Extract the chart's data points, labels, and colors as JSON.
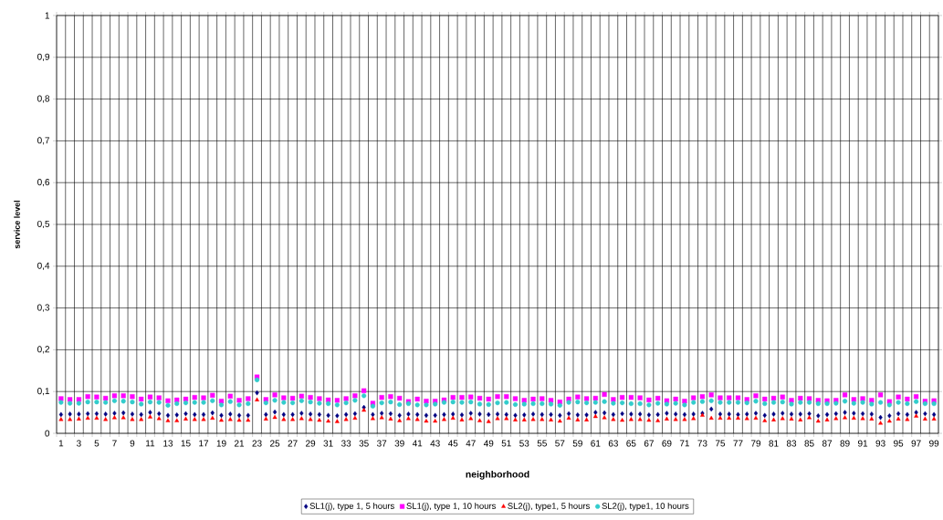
{
  "chart_data": {
    "type": "scatter",
    "xlabel": "neighborhood",
    "ylabel": "service level",
    "categories": [
      "1",
      null,
      "3",
      null,
      "5",
      null,
      "7",
      null,
      "9",
      null,
      "11",
      null,
      "13",
      null,
      "15",
      null,
      "17",
      null,
      "19",
      null,
      "21",
      null,
      "23",
      null,
      "25",
      null,
      "27",
      null,
      "29",
      null,
      "31",
      null,
      "33",
      null,
      "35",
      null,
      "37",
      null,
      "39",
      null,
      "41",
      null,
      "43",
      null,
      "45",
      null,
      "47",
      null,
      "49",
      null,
      "51",
      null,
      "53",
      null,
      "55",
      null,
      "57",
      null,
      "59",
      null,
      "61",
      null,
      "63",
      null,
      "65",
      null,
      "67",
      null,
      "69",
      null,
      "71",
      null,
      "73",
      null,
      "75",
      null,
      "77",
      null,
      "79",
      null,
      "81",
      null,
      "83",
      null,
      "85",
      null,
      "87",
      null,
      "89",
      null,
      "91",
      null,
      "93",
      null,
      "95",
      null,
      "97",
      null,
      "99"
    ],
    "series": [
      {
        "name": "SL1(j), type 1, 5 hours",
        "color": "#000080",
        "marker": "diamond",
        "values": [
          0.045,
          0.046,
          0.046,
          0.047,
          0.047,
          0.046,
          0.048,
          0.049,
          0.046,
          0.045,
          0.05,
          0.047,
          0.043,
          0.044,
          0.047,
          0.045,
          0.045,
          0.049,
          0.043,
          0.046,
          0.043,
          0.043,
          0.097,
          0.045,
          0.051,
          0.045,
          0.045,
          0.048,
          0.046,
          0.045,
          0.043,
          0.042,
          0.045,
          0.047,
          0.062,
          0.045,
          0.048,
          0.047,
          0.043,
          0.046,
          0.045,
          0.043,
          0.043,
          0.045,
          0.046,
          0.044,
          0.048,
          0.046,
          0.045,
          0.046,
          0.045,
          0.043,
          0.044,
          0.046,
          0.045,
          0.045,
          0.043,
          0.047,
          0.044,
          0.044,
          0.05,
          0.049,
          0.045,
          0.047,
          0.046,
          0.046,
          0.044,
          0.045,
          0.048,
          0.046,
          0.045,
          0.046,
          0.048,
          0.058,
          0.046,
          0.046,
          0.045,
          0.046,
          0.048,
          0.043,
          0.046,
          0.048,
          0.046,
          0.046,
          0.047,
          0.042,
          0.045,
          0.047,
          0.05,
          0.048,
          0.047,
          0.046,
          0.038,
          0.042,
          0.047,
          0.045,
          0.05,
          0.047,
          0.045
        ]
      },
      {
        "name": "SL1(j), type 1, 10 hours",
        "color": "#ff00ff",
        "marker": "square",
        "values": [
          0.083,
          0.081,
          0.081,
          0.088,
          0.087,
          0.084,
          0.09,
          0.09,
          0.088,
          0.082,
          0.087,
          0.085,
          0.078,
          0.08,
          0.082,
          0.086,
          0.085,
          0.091,
          0.077,
          0.089,
          0.079,
          0.083,
          0.135,
          0.081,
          0.092,
          0.085,
          0.084,
          0.089,
          0.086,
          0.083,
          0.08,
          0.079,
          0.083,
          0.09,
          0.102,
          0.072,
          0.086,
          0.088,
          0.084,
          0.076,
          0.082,
          0.077,
          0.077,
          0.08,
          0.086,
          0.086,
          0.087,
          0.084,
          0.082,
          0.088,
          0.088,
          0.083,
          0.079,
          0.082,
          0.083,
          0.079,
          0.075,
          0.082,
          0.087,
          0.083,
          0.084,
          0.093,
          0.081,
          0.086,
          0.086,
          0.085,
          0.08,
          0.084,
          0.078,
          0.082,
          0.077,
          0.085,
          0.088,
          0.092,
          0.085,
          0.085,
          0.085,
          0.081,
          0.09,
          0.082,
          0.084,
          0.087,
          0.079,
          0.084,
          0.083,
          0.079,
          0.078,
          0.079,
          0.092,
          0.081,
          0.083,
          0.079,
          0.092,
          0.076,
          0.087,
          0.082,
          0.088,
          0.077,
          0.078
        ]
      },
      {
        "name": "SL2(j), type1, 5 hours",
        "color": "#ff0000",
        "marker": "triangle",
        "values": [
          0.033,
          0.033,
          0.034,
          0.036,
          0.036,
          0.033,
          0.037,
          0.037,
          0.033,
          0.033,
          0.039,
          0.035,
          0.03,
          0.03,
          0.034,
          0.033,
          0.033,
          0.036,
          0.031,
          0.033,
          0.031,
          0.031,
          0.08,
          0.034,
          0.038,
          0.033,
          0.033,
          0.035,
          0.033,
          0.031,
          0.029,
          0.028,
          0.033,
          0.036,
          0.055,
          0.035,
          0.037,
          0.034,
          0.03,
          0.035,
          0.033,
          0.029,
          0.029,
          0.033,
          0.036,
          0.032,
          0.035,
          0.03,
          0.028,
          0.035,
          0.035,
          0.032,
          0.032,
          0.033,
          0.033,
          0.032,
          0.029,
          0.036,
          0.032,
          0.032,
          0.04,
          0.037,
          0.033,
          0.031,
          0.033,
          0.033,
          0.031,
          0.03,
          0.034,
          0.033,
          0.033,
          0.035,
          0.043,
          0.036,
          0.036,
          0.036,
          0.036,
          0.035,
          0.036,
          0.03,
          0.032,
          0.035,
          0.034,
          0.032,
          0.037,
          0.029,
          0.032,
          0.035,
          0.037,
          0.036,
          0.035,
          0.034,
          0.024,
          0.029,
          0.034,
          0.033,
          0.041,
          0.034,
          0.034
        ]
      },
      {
        "name": "SL2(j), type1, 10 hours",
        "color": "#33cccc",
        "marker": "circle",
        "values": [
          0.074,
          0.072,
          0.072,
          0.075,
          0.075,
          0.074,
          0.078,
          0.077,
          0.075,
          0.07,
          0.075,
          0.074,
          0.067,
          0.071,
          0.073,
          0.074,
          0.074,
          0.078,
          0.068,
          0.076,
          0.068,
          0.071,
          0.128,
          0.073,
          0.079,
          0.074,
          0.073,
          0.078,
          0.075,
          0.072,
          0.071,
          0.068,
          0.073,
          0.079,
          0.09,
          0.065,
          0.073,
          0.075,
          0.069,
          0.071,
          0.068,
          0.068,
          0.07,
          0.074,
          0.075,
          0.074,
          0.075,
          0.07,
          0.069,
          0.073,
          0.074,
          0.069,
          0.07,
          0.071,
          0.071,
          0.07,
          0.067,
          0.074,
          0.075,
          0.073,
          0.074,
          0.076,
          0.072,
          0.073,
          0.071,
          0.071,
          0.068,
          0.072,
          0.07,
          0.072,
          0.068,
          0.074,
          0.076,
          0.078,
          0.074,
          0.074,
          0.074,
          0.073,
          0.077,
          0.071,
          0.074,
          0.075,
          0.07,
          0.074,
          0.074,
          0.071,
          0.071,
          0.072,
          0.077,
          0.072,
          0.074,
          0.07,
          0.074,
          0.068,
          0.074,
          0.071,
          0.076,
          0.071,
          0.071
        ]
      }
    ],
    "ylim": [
      0,
      1
    ],
    "yticks": [
      0,
      {
        "value": 0.1,
        "label": "0,1"
      },
      {
        "value": 0.2,
        "label": "0,2"
      },
      {
        "value": 0.3,
        "label": "0,3"
      },
      {
        "value": 0.4,
        "label": "0,4"
      },
      {
        "value": 0.5,
        "label": "0,5"
      },
      {
        "value": 0.6,
        "label": "0,6"
      },
      {
        "value": 0.7,
        "label": "0,7"
      },
      {
        "value": 0.8,
        "label": "0,8"
      },
      {
        "value": 0.9,
        "label": "0,9"
      },
      1
    ],
    "grid": true,
    "legend": "bottom"
  }
}
